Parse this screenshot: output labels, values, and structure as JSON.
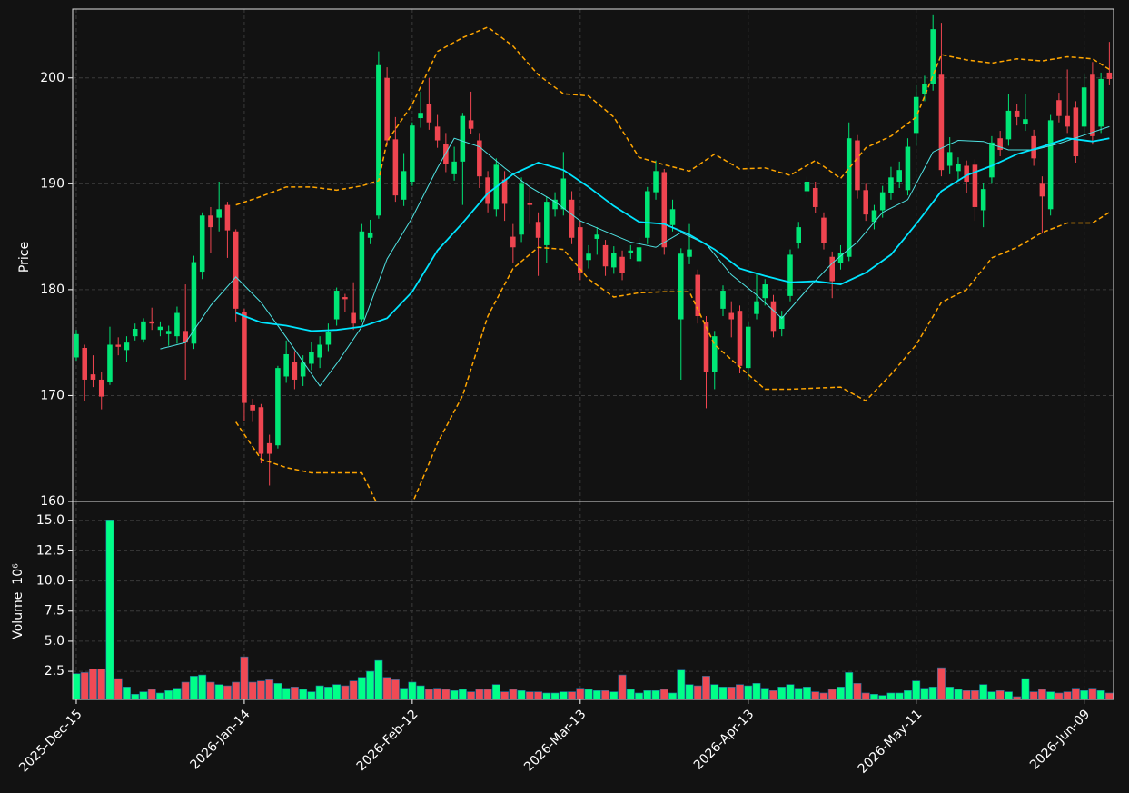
{
  "chart_data": {
    "type": "candlestick",
    "ylabel": "Price",
    "ylim": [
      160,
      206.5
    ],
    "yticks": [
      160,
      170,
      180,
      190,
      200
    ],
    "xlim": [
      -0.43,
      123.5
    ],
    "xticks": [
      {
        "value": 0,
        "label": "2025-Dec-15"
      },
      {
        "value": 20,
        "label": "2026-Jan-14"
      },
      {
        "value": 40,
        "label": "2026-Feb-12"
      },
      {
        "value": 60,
        "label": "2026-Mar-13"
      },
      {
        "value": 80,
        "label": "2026-Apr-13"
      },
      {
        "value": 100,
        "label": "2026-May-11"
      },
      {
        "value": 120,
        "label": "2026-Jun-09"
      }
    ],
    "grid": true,
    "up_color": "#00e676",
    "down_color": "#ef4550",
    "open": [
      173.6,
      174.5,
      172,
      171.5,
      171.3,
      174.8,
      174.3,
      175.6,
      175.3,
      177,
      176.2,
      175.8,
      175.6,
      176.1,
      174.9,
      181.7,
      187,
      186.8,
      188,
      185.5,
      177.9,
      169.1,
      168.9,
      165.5,
      165.3,
      171.8,
      173.2,
      171.8,
      173,
      173.6,
      174.8,
      177.2,
      179.3,
      177.8,
      177.2,
      184.9,
      187,
      200,
      194.2,
      188.5,
      190.2,
      196.2,
      197.5,
      195.4,
      193.8,
      190.9,
      192.1,
      196,
      194.1,
      190.6,
      187.6,
      190.4,
      185,
      185.2,
      188.2,
      186.4,
      184.2,
      187.6,
      187.6,
      188.5,
      185.9,
      182.8,
      184.8,
      184.2,
      182.1,
      183.1,
      183.5,
      182.7,
      184.9,
      189.2,
      191.1,
      186.1,
      177.2,
      183.1,
      181.4,
      176.9,
      172.2,
      178.2,
      177.8,
      178,
      172.6,
      177.7,
      179.2,
      178.9,
      176.3,
      179.4,
      184.4,
      189.3,
      189.6,
      186.8,
      183.1,
      182.5,
      183.1,
      194.1,
      189.4,
      186.4,
      187.5,
      189.1,
      190.2,
      189.4,
      194.8,
      198.5,
      199.4,
      200.3,
      191.7,
      191.2,
      191.7,
      191.8,
      187.5,
      190.6,
      194.3,
      194.2,
      196.9,
      195.6,
      194.5,
      190,
      187.6,
      197.9,
      196.4,
      197.2,
      195.4,
      200.3,
      195.4,
      200.5
    ],
    "high": [
      176.2,
      174.8,
      173.8,
      172.2,
      176.5,
      175.5,
      175.6,
      176.8,
      177.3,
      178.3,
      177,
      176.6,
      178.4,
      180.5,
      183.2,
      187.3,
      187.8,
      190.2,
      188.3,
      185.7,
      178.2,
      169.7,
      169.2,
      166.3,
      172.8,
      175.2,
      174.2,
      173.8,
      175.1,
      175.6,
      176.8,
      180.2,
      179.6,
      180.7,
      186.2,
      186.6,
      202.5,
      201,
      196.3,
      192.9,
      195.8,
      198.7,
      200,
      196.5,
      194.8,
      193.5,
      196.7,
      198.7,
      194.8,
      191.2,
      192.4,
      191.2,
      186.2,
      190.6,
      189.7,
      187.3,
      188.8,
      189.2,
      193,
      189.3,
      186.5,
      184.2,
      185.9,
      184.7,
      184.1,
      183.7,
      184.2,
      184.9,
      189.7,
      192.2,
      191.4,
      188.5,
      183.9,
      186.2,
      181.9,
      177.5,
      176.1,
      180.4,
      178.9,
      178.5,
      176.9,
      181.5,
      181,
      179.5,
      178,
      183.8,
      186.4,
      190.7,
      190.2,
      187.3,
      183.6,
      184.2,
      195.8,
      194.6,
      190,
      188,
      189.8,
      191.6,
      192.1,
      194.3,
      199.3,
      200.2,
      206,
      205.2,
      194.4,
      192.5,
      192.2,
      192.3,
      190.1,
      194.5,
      195,
      198.5,
      197.5,
      198.5,
      195.1,
      190.7,
      196.5,
      198.6,
      200.8,
      197.8,
      200.3,
      201.5,
      200.5,
      203.4
    ],
    "low": [
      173.3,
      169.5,
      170.8,
      168.7,
      171,
      173.8,
      173.2,
      175.2,
      175,
      176.2,
      175.6,
      174.7,
      174.9,
      171.5,
      174.4,
      181,
      183.5,
      185.5,
      183,
      177,
      167.6,
      167.5,
      163.6,
      161.5,
      165,
      171.2,
      170.6,
      170.9,
      172.4,
      172.6,
      174.2,
      176.6,
      177.9,
      176.2,
      176.9,
      184.3,
      186.7,
      193.6,
      188.3,
      187.9,
      189.8,
      195.3,
      195.1,
      193.4,
      191.1,
      190.3,
      188,
      194.7,
      189.6,
      187.3,
      186.9,
      186.5,
      182.5,
      184.5,
      186.2,
      181.3,
      182.5,
      186.9,
      187,
      184.3,
      180.9,
      182,
      183.3,
      181.3,
      181.5,
      180.9,
      182.9,
      182,
      184.3,
      188.5,
      183.3,
      185.5,
      171.5,
      182.4,
      176.8,
      168.8,
      170.6,
      177.5,
      175.5,
      172.1,
      171.5,
      177.2,
      178.5,
      175.5,
      175.6,
      178.9,
      183.9,
      188.7,
      187.2,
      183.8,
      179.2,
      181.9,
      182.7,
      188.6,
      186.5,
      185.7,
      186.8,
      188.5,
      189.6,
      188.9,
      193.6,
      197.8,
      198.8,
      190.7,
      190.9,
      190.3,
      189.1,
      186.5,
      185.9,
      190,
      192.6,
      193.6,
      195.5,
      195,
      191.7,
      185.3,
      187,
      195.8,
      194.8,
      192,
      194.8,
      193.7,
      194.8,
      199.3
    ],
    "close": [
      175.8,
      171.5,
      171.5,
      169.9,
      174.8,
      174.6,
      175,
      176.3,
      177,
      176.8,
      176.5,
      176.1,
      177.8,
      175,
      182.6,
      187,
      185.9,
      187.6,
      185.6,
      178.2,
      169.3,
      168.6,
      164.5,
      164.5,
      172.6,
      173.9,
      171.5,
      173.1,
      174.1,
      174.8,
      176,
      179.9,
      179.1,
      176.8,
      185.5,
      185.4,
      201.2,
      194.1,
      188.9,
      191.2,
      195.5,
      196.7,
      195.8,
      194.1,
      191.9,
      192.1,
      196.4,
      195.2,
      190.7,
      188.1,
      191.8,
      188.1,
      184,
      190,
      188,
      184.9,
      188.3,
      188.5,
      190.5,
      184.9,
      181.6,
      183.4,
      185.2,
      182.2,
      183.5,
      181.6,
      183.7,
      184,
      189.3,
      191.2,
      184,
      187.6,
      183.4,
      183.8,
      177.5,
      172.2,
      175.6,
      179.9,
      177.2,
      172.8,
      176.5,
      178.9,
      180.5,
      176.1,
      177.5,
      183.3,
      185.9,
      190.2,
      187.8,
      184.4,
      180.8,
      183.5,
      194.3,
      189.4,
      187.1,
      187.5,
      189.2,
      190.6,
      191.3,
      193.5,
      198.2,
      199.4,
      204.6,
      191.3,
      193,
      191.9,
      190.2,
      187.8,
      189.5,
      193.9,
      193.2,
      196.9,
      196.3,
      196.1,
      192.4,
      188.8,
      196,
      196.4,
      195.4,
      192.6,
      199.1,
      194.5,
      199.9,
      199.9
    ],
    "lines": [
      {
        "color": "#4fe3e3",
        "width": 1,
        "x": [
          10,
          13,
          16,
          19,
          22,
          25,
          29,
          31,
          34,
          37,
          40,
          43,
          45,
          48,
          51,
          54,
          57,
          60,
          63,
          66,
          69,
          72,
          75,
          78,
          81,
          84,
          87,
          90,
          93,
          96,
          99,
          102,
          105,
          108,
          111,
          114,
          117,
          120,
          123
        ],
        "values": [
          174.4,
          175.0,
          178.5,
          181.2,
          178.8,
          175.5,
          170.9,
          173.0,
          176.5,
          182.9,
          186.8,
          191.5,
          194.3,
          193.5,
          191.5,
          189.7,
          188.3,
          186.5,
          185.5,
          184.5,
          184.0,
          185.4,
          184.3,
          181.4,
          179.5,
          177.3,
          180.0,
          182.5,
          184.5,
          187.3,
          188.5,
          193.0,
          194.1,
          194.0,
          193.2,
          193.2,
          193.8,
          194.6,
          195.4
        ]
      },
      {
        "color": "#00e5ff",
        "width": 1.8,
        "x": [
          19,
          22,
          25,
          28,
          31,
          34,
          37,
          40,
          43,
          46,
          49,
          52,
          55,
          58,
          61,
          64,
          67,
          70,
          73,
          76,
          79,
          82,
          85,
          88,
          91,
          94,
          97,
          100,
          103,
          106,
          109,
          112,
          115,
          118,
          121,
          123
        ],
        "values": [
          177.8,
          176.9,
          176.6,
          176.1,
          176.2,
          176.5,
          177.3,
          179.8,
          183.7,
          186.3,
          189.1,
          190.9,
          192.0,
          191.3,
          189.7,
          187.9,
          186.4,
          186.2,
          185.2,
          183.8,
          182.0,
          181.3,
          180.7,
          180.8,
          180.5,
          181.6,
          183.3,
          186.2,
          189.3,
          190.8,
          191.7,
          192.8,
          193.5,
          194.3,
          194.0,
          194.3
        ]
      },
      {
        "color": "#ffa500",
        "width": 1.5,
        "dash": true,
        "x": [
          19,
          22,
          25,
          28,
          31,
          34,
          36,
          37,
          40,
          43,
          46,
          49,
          52,
          55,
          58,
          61,
          64,
          67,
          70,
          73,
          76,
          79,
          82,
          85,
          88,
          91,
          94,
          97,
          100,
          103,
          106,
          109,
          112,
          115,
          118,
          121,
          123
        ],
        "values": [
          188.0,
          188.8,
          189.7,
          189.7,
          189.4,
          189.8,
          190.3,
          194.0,
          197.5,
          202.5,
          203.8,
          204.8,
          203.0,
          200.3,
          198.5,
          198.3,
          196.3,
          192.5,
          191.8,
          191.2,
          192.8,
          191.4,
          191.5,
          190.8,
          192.2,
          190.5,
          193.4,
          194.5,
          196.3,
          202.2,
          201.7,
          201.4,
          201.8,
          201.6,
          202.0,
          201.8,
          200.8
        ]
      },
      {
        "color": "#ffa500",
        "width": 1.5,
        "dash": true,
        "x": [
          19,
          22,
          25,
          28,
          31,
          34,
          36,
          37,
          40,
          43,
          46,
          49,
          52,
          55,
          58,
          61,
          64,
          67,
          70,
          73,
          76,
          79,
          82,
          85,
          88,
          91,
          94,
          97,
          100,
          103,
          106,
          109,
          112,
          115,
          118,
          121,
          123
        ],
        "values": [
          167.5,
          164.0,
          163.2,
          162.7,
          162.7,
          162.7,
          159.5,
          158.5,
          159.8,
          165.5,
          170.0,
          177.5,
          182.0,
          184.0,
          183.8,
          181.0,
          179.3,
          179.7,
          179.8,
          179.8,
          174.8,
          172.7,
          170.6,
          170.6,
          170.7,
          170.8,
          169.5,
          172.0,
          174.8,
          178.8,
          180.0,
          183.0,
          184.0,
          185.4,
          186.3,
          186.3,
          187.3
        ]
      }
    ],
    "volume": {
      "ylabel": "Volume",
      "scale_label": "10⁶",
      "ylim": [
        0.17,
        16.6
      ],
      "yticks": [
        2.5,
        {
          "value": 5,
          "label": "5.0"
        },
        7.5,
        {
          "value": 10,
          "label": "10.0"
        },
        12.5,
        {
          "value": 15,
          "label": "15.0"
        }
      ],
      "up_color": "#00ff88",
      "down_color": "#f04a55",
      "values": [
        2.3,
        2.4,
        2.7,
        2.7,
        15.0,
        1.9,
        1.2,
        0.6,
        0.8,
        1.0,
        0.7,
        0.9,
        1.1,
        1.6,
        2.1,
        2.2,
        1.6,
        1.4,
        1.3,
        1.6,
        3.7,
        1.6,
        1.7,
        1.8,
        1.5,
        1.1,
        1.2,
        1.0,
        0.8,
        1.3,
        1.2,
        1.4,
        1.3,
        1.7,
        2.0,
        2.5,
        3.4,
        2.0,
        1.8,
        1.1,
        1.6,
        1.3,
        1.0,
        1.1,
        1.0,
        0.9,
        1.0,
        0.8,
        1.0,
        1.0,
        1.4,
        0.8,
        1.0,
        0.9,
        0.8,
        0.8,
        0.7,
        0.7,
        0.8,
        0.8,
        1.1,
        1.0,
        0.9,
        0.9,
        0.8,
        2.2,
        1.0,
        0.7,
        0.9,
        0.9,
        1.0,
        0.7,
        2.6,
        1.4,
        1.3,
        2.1,
        1.4,
        1.2,
        1.2,
        1.4,
        1.3,
        1.5,
        1.1,
        0.9,
        1.2,
        1.4,
        1.1,
        1.2,
        0.8,
        0.7,
        1.0,
        1.2,
        2.4,
        1.5,
        0.7,
        0.6,
        0.5,
        0.7,
        0.7,
        0.9,
        1.7,
        1.1,
        1.2,
        2.8,
        1.2,
        1.0,
        0.9,
        0.9,
        1.4,
        0.8,
        0.9,
        0.8,
        0.4,
        1.9,
        0.8,
        1.0,
        0.8,
        0.7,
        0.8,
        1.1,
        0.9,
        1.1,
        0.9,
        0.7
      ]
    }
  }
}
